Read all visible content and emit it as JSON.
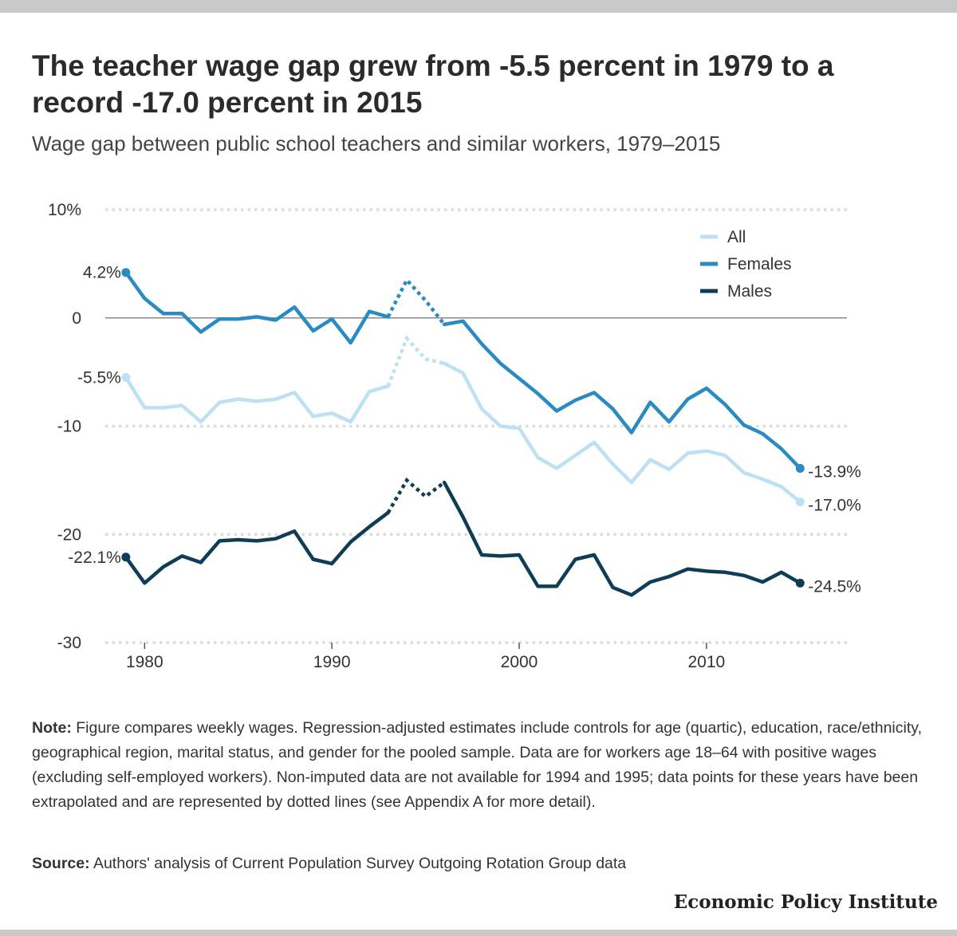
{
  "title": "The teacher wage gap grew from -5.5 percent in 1979 to a record -17.0 percent in 2015",
  "subtitle": "Wage gap between public school teachers and similar workers, 1979–2015",
  "note_label": "Note:",
  "note_text": "Figure compares weekly wages. Regression-adjusted estimates include controls for age (quartic), education, race/ethnicity, geographical region, marital status, and gender for the pooled sample. Data are for workers age 18–64 with positive wages (excluding self-employed workers). Non-imputed data are not available for 1994 and 1995; data points for these years have been extrapolated and are represented by dotted lines (see Appendix A for more detail).",
  "source_label": "Source:",
  "source_text": "Authors' analysis of Current Population Survey Outgoing Rotation Group data",
  "brand": "Economic Policy Institute",
  "chart_data": {
    "type": "line",
    "ylim": [
      -30,
      10
    ],
    "xlim": [
      1977.9,
      2017.5
    ],
    "y_ticks": [
      {
        "value": 10,
        "label": "10%"
      },
      {
        "value": 0,
        "label": "0"
      },
      {
        "value": -10,
        "label": "-10"
      },
      {
        "value": -20,
        "label": "-20"
      },
      {
        "value": -30,
        "label": "-30"
      }
    ],
    "x_ticks": [
      1980,
      1990,
      2000,
      2010
    ],
    "grid": true,
    "legend_position": "top-right",
    "dotted_years": [
      1993,
      1994,
      1995,
      1996
    ],
    "x": [
      1979,
      1980,
      1981,
      1982,
      1983,
      1984,
      1985,
      1986,
      1987,
      1988,
      1989,
      1990,
      1991,
      1992,
      1993,
      1994,
      1995,
      1996,
      1997,
      1998,
      1999,
      2000,
      2001,
      2002,
      2003,
      2004,
      2005,
      2006,
      2007,
      2008,
      2009,
      2010,
      2011,
      2012,
      2013,
      2014,
      2015
    ],
    "series": [
      {
        "name": "All",
        "color": "#bde1f2",
        "values": [
          -5.5,
          -8.3,
          -8.3,
          -8.1,
          -9.6,
          -7.8,
          -7.5,
          -7.7,
          -7.5,
          -6.9,
          -9.1,
          -8.8,
          -9.6,
          -6.8,
          -6.3,
          -1.9,
          -3.8,
          -4.2,
          -5.1,
          -8.4,
          -10.0,
          -10.2,
          -12.9,
          -13.9,
          -12.7,
          -11.5,
          -13.5,
          -15.2,
          -13.1,
          -14.0,
          -12.5,
          -12.3,
          -12.7,
          -14.3,
          -14.9,
          -15.6,
          -17.0
        ],
        "start_label": "-5.5%",
        "end_label": "-17.0%"
      },
      {
        "name": "Females",
        "color": "#2a8ac2",
        "values": [
          4.2,
          1.8,
          0.4,
          0.4,
          -1.3,
          -0.1,
          -0.1,
          0.1,
          -0.2,
          1.0,
          -1.2,
          -0.1,
          -2.3,
          0.6,
          0.1,
          3.5,
          1.6,
          -0.6,
          -0.3,
          -2.4,
          -4.2,
          -5.6,
          -7.0,
          -8.6,
          -7.6,
          -6.9,
          -8.4,
          -10.6,
          -7.8,
          -9.6,
          -7.5,
          -6.5,
          -8.0,
          -9.9,
          -10.7,
          -12.1,
          -13.9
        ],
        "start_label": "4.2%",
        "end_label": "-13.9%"
      },
      {
        "name": "Males",
        "color": "#0f3d57",
        "values": [
          -22.1,
          -24.5,
          -23.0,
          -22.0,
          -22.6,
          -20.6,
          -20.5,
          -20.6,
          -20.4,
          -19.7,
          -22.3,
          -22.7,
          -20.7,
          -19.3,
          -18.0,
          -15.0,
          -16.5,
          -15.2,
          -18.4,
          -21.9,
          -22.0,
          -21.9,
          -24.8,
          -24.8,
          -22.3,
          -21.9,
          -24.9,
          -25.6,
          -24.4,
          -23.9,
          -23.2,
          -23.4,
          -23.5,
          -23.8,
          -24.4,
          -23.5,
          -24.5
        ],
        "start_label": "-22.1%",
        "end_label": "-24.5%"
      }
    ]
  }
}
